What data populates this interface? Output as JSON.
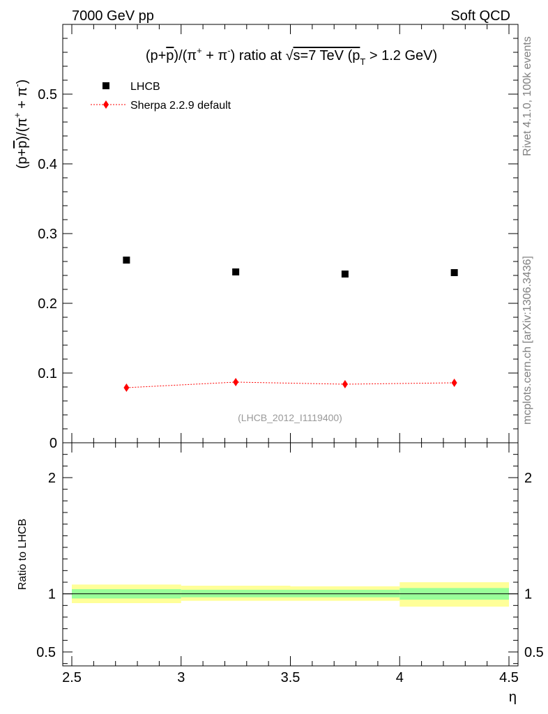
{
  "header": {
    "left": "7000 GeV pp",
    "right": "Soft QCD"
  },
  "side_labels": {
    "rivet": "Rivet 4.1.0,  100k events",
    "mcplots": "mcplots.cern.ch [arXiv:1306.3436]"
  },
  "chart_data": {
    "type": "scatter",
    "title": {
      "prefix": "(p+",
      "pbar": "p",
      "mid": ")/(π",
      "sup1": "+",
      "plus": " + π",
      "sup2": "-",
      "after": ") ratio at ",
      "sqrt": "√",
      "s_text": "s=7 TeV (p",
      "sub": "T",
      "end": " > 1.2 GeV)"
    },
    "ylabel": {
      "prefix": "(p+",
      "pbar": "p",
      "mid": ")/(π",
      "sup1": "+",
      "plus": " + π",
      "sup2": "-",
      "end": ")"
    },
    "xlabel": "η",
    "ratio_ylabel": "Ratio to LHCB",
    "watermark": "(LHCB_2012_I1119400)",
    "xlim": [
      2.5,
      4.5
    ],
    "ylim": [
      0,
      0.6
    ],
    "ratio_ylim": [
      0.38,
      2.3
    ],
    "x_ticks": [
      "2.5",
      "3",
      "3.5",
      "4",
      "4.5"
    ],
    "y_ticks": [
      "0",
      "0.1",
      "0.2",
      "0.3",
      "0.4",
      "0.5"
    ],
    "ratio_ticks": [
      "0.5",
      "1",
      "2"
    ],
    "legend": {
      "data": "LHCB",
      "mc": "Sherpa 2.2.9 default"
    },
    "x": [
      2.75,
      3.25,
      3.75,
      4.25
    ],
    "bins": [
      [
        2.5,
        3.0
      ],
      [
        3.0,
        3.5
      ],
      [
        3.5,
        4.0
      ],
      [
        4.0,
        4.5
      ]
    ],
    "series": [
      {
        "name": "LHCB",
        "values": [
          0.262,
          0.245,
          0.242,
          0.244
        ],
        "color": "#000000"
      },
      {
        "name": "Sherpa 2.2.9 default",
        "values": [
          0.079,
          0.087,
          0.084,
          0.086
        ],
        "color": "#ff0000"
      }
    ],
    "ratio_band_inner": [
      [
        0.96,
        1.04
      ],
      [
        0.97,
        1.035
      ],
      [
        0.97,
        1.035
      ],
      [
        0.95,
        1.05
      ]
    ],
    "ratio_band_outer": [
      [
        0.92,
        1.08
      ],
      [
        0.94,
        1.07
      ],
      [
        0.94,
        1.065
      ],
      [
        0.89,
        1.1
      ]
    ],
    "colors": {
      "band_inner": "#99ff99",
      "band_outer": "#ffff99",
      "mc": "#ff0000",
      "data": "#000000",
      "watermark": "#999999",
      "side_text": "#808080"
    }
  }
}
